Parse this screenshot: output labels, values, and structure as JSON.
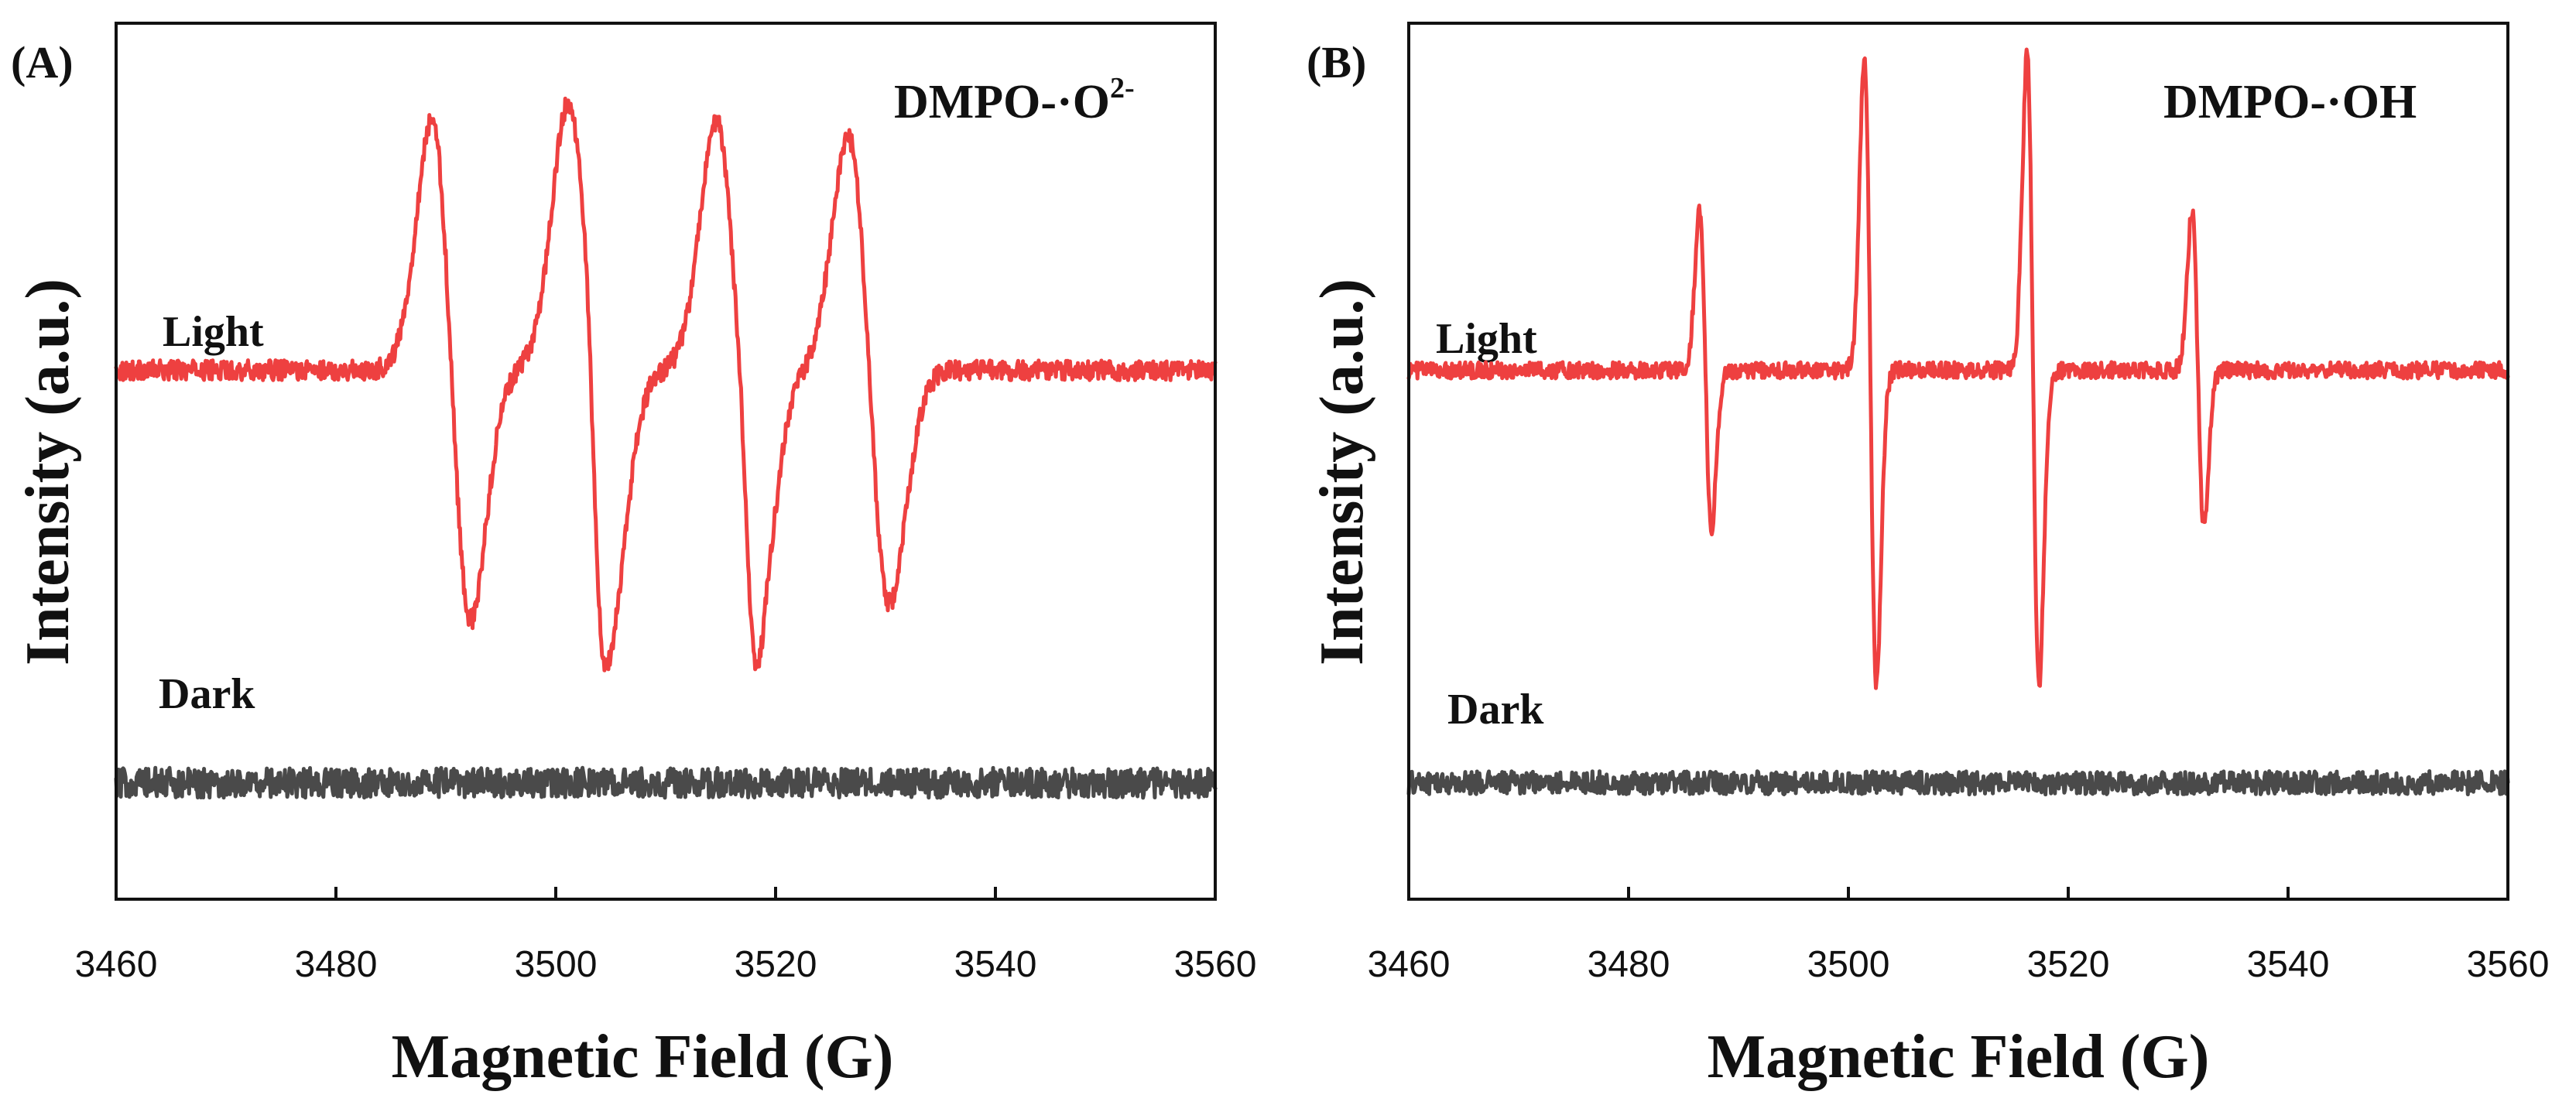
{
  "chart_data": [
    {
      "type": "line",
      "panel_label": "(A)",
      "species_main": "DMPO-·O",
      "species_sup": "2-",
      "xlabel": "Magnetic Field (G)",
      "ylabel": "Intensity (a.u.)",
      "xlim": [
        3460,
        3560
      ],
      "x_ticks": [
        "3460",
        "3480",
        "3500",
        "3520",
        "3540",
        "3560"
      ],
      "grid": false,
      "series": [
        {
          "name": "Light",
          "color": "#ee4040",
          "baseline": 0.62,
          "noise": 0.03,
          "peaks": [
            {
              "center": 3490.5,
              "width": 1.8,
              "amplitude": 0.75
            },
            {
              "center": 3503.0,
              "width": 1.9,
              "amplitude": 0.8
            },
            {
              "center": 3516.5,
              "width": 1.9,
              "amplitude": 0.75
            },
            {
              "center": 3528.5,
              "width": 1.9,
              "amplitude": 0.7
            },
            {
              "center": 3503.5,
              "width": 0.7,
              "amplitude": 0.15
            },
            {
              "center": 3517.5,
              "width": 0.7,
              "amplitude": 0.15
            }
          ]
        },
        {
          "name": "Dark",
          "color": "#4a4a4a",
          "baseline": -0.62,
          "noise": 0.045,
          "peaks": []
        }
      ]
    },
    {
      "type": "line",
      "panel_label": "(B)",
      "species_main": "DMPO-·OH",
      "species_sup": "",
      "xlabel": "Magnetic Field (G)",
      "ylabel": "Intensity (a.u.)",
      "xlim": [
        3460,
        3560
      ],
      "x_ticks": [
        "3460",
        "3480",
        "3500",
        "3520",
        "3540",
        "3560"
      ],
      "grid": false,
      "series": [
        {
          "name": "Light",
          "color": "#ee4040",
          "baseline": 0.62,
          "noise": 0.025,
          "peaks": [
            {
              "center": 3487.0,
              "width": 0.55,
              "amplitude": 0.48
            },
            {
              "center": 3502.0,
              "width": 0.55,
              "amplitude": 0.95
            },
            {
              "center": 3516.8,
              "width": 0.55,
              "amplitude": 0.95
            },
            {
              "center": 3531.8,
              "width": 0.55,
              "amplitude": 0.48
            }
          ]
        },
        {
          "name": "Dark",
          "color": "#4a4a4a",
          "baseline": -0.62,
          "noise": 0.035,
          "peaks": []
        }
      ]
    }
  ]
}
